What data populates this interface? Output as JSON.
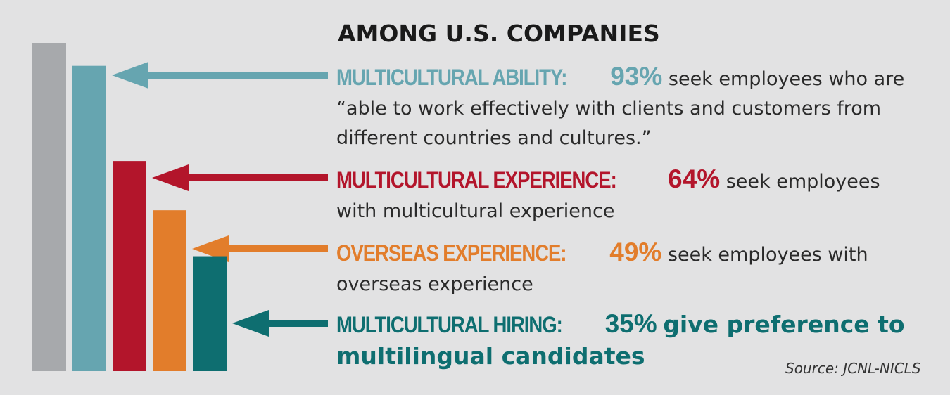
{
  "chart_data": {
    "type": "bar",
    "title": "AMONG U.S. COMPANIES",
    "categories": [
      "",
      "MULTICULTURAL ABILITY:",
      "MULTICULTURAL EXPERIENCE:",
      "OVERSEAS EXPERIENCE:",
      "MULTICULTURAL HIRING:"
    ],
    "values": [
      100,
      93,
      64,
      49,
      35
    ],
    "ylim": [
      0,
      100
    ],
    "colors": [
      "#a7a9ac",
      "#66a5b0",
      "#b3152b",
      "#e27d2b",
      "#0e6e70"
    ],
    "grid": false,
    "source": "Source: JCNL-NICLS"
  },
  "items": [
    {
      "label": "MULTICULTURAL ABILITY:",
      "pct": "93%",
      "text": "seek employees who are “able to work effectively with clients and customers from different countries and cultures.”"
    },
    {
      "label": "MULTICULTURAL EXPERIENCE:",
      "pct": "64%",
      "text": "seek employees with multicultural experience"
    },
    {
      "label": "OVERSEAS EXPERIENCE:",
      "pct": "49%",
      "text": "seek employees with overseas experience"
    },
    {
      "label": "MULTICULTURAL HIRING:",
      "pct": "35%",
      "text": "give preference to multilingual candidates"
    }
  ]
}
